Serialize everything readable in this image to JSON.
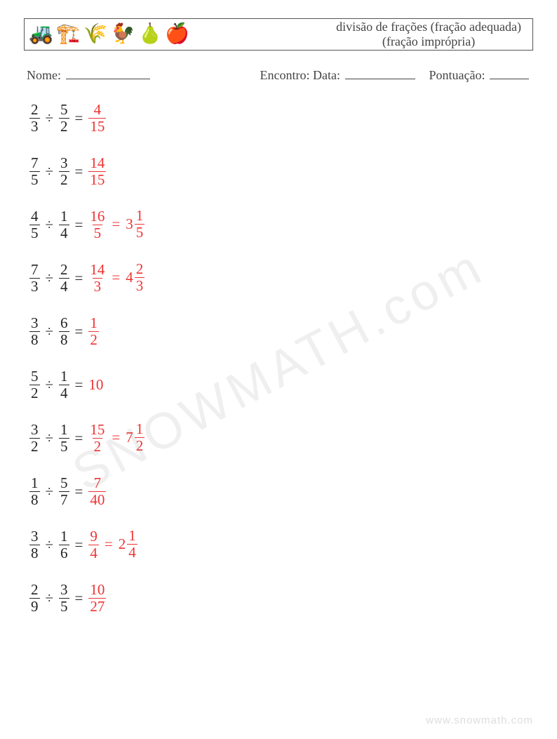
{
  "header": {
    "icons": [
      "🚜",
      "🏗️",
      "🌾",
      "🐓",
      "🍐",
      "🍎"
    ],
    "title_line1": "divisão de frações (fração adequada)",
    "title_line2": "(fração imprópria)"
  },
  "info": {
    "nome_label": "Nome:",
    "nome_blank_w": 120,
    "encontro_label": "Encontro: Data:",
    "encontro_blank_w": 100,
    "pontuacao_label": "Pontuação:",
    "pontuacao_blank_w": 56
  },
  "style": {
    "answer_color": "#e33",
    "text_color": "#222",
    "row_font_size": 21,
    "row_spacing": 28
  },
  "problems": [
    {
      "a": {
        "n": 2,
        "d": 3
      },
      "b": {
        "n": 5,
        "d": 2
      },
      "op": "÷",
      "ans": {
        "frac": {
          "n": 4,
          "d": 15
        }
      }
    },
    {
      "a": {
        "n": 7,
        "d": 5
      },
      "b": {
        "n": 3,
        "d": 2
      },
      "op": "÷",
      "ans": {
        "frac": {
          "n": 14,
          "d": 15
        }
      }
    },
    {
      "a": {
        "n": 4,
        "d": 5
      },
      "b": {
        "n": 1,
        "d": 4
      },
      "op": "÷",
      "ans": {
        "frac": {
          "n": 16,
          "d": 5
        },
        "mixed": {
          "w": 3,
          "n": 1,
          "d": 5
        }
      }
    },
    {
      "a": {
        "n": 7,
        "d": 3
      },
      "b": {
        "n": 2,
        "d": 4
      },
      "op": "÷",
      "ans": {
        "frac": {
          "n": 14,
          "d": 3
        },
        "mixed": {
          "w": 4,
          "n": 2,
          "d": 3
        }
      }
    },
    {
      "a": {
        "n": 3,
        "d": 8
      },
      "b": {
        "n": 6,
        "d": 8
      },
      "op": "÷",
      "ans": {
        "frac": {
          "n": 1,
          "d": 2
        }
      }
    },
    {
      "a": {
        "n": 5,
        "d": 2
      },
      "b": {
        "n": 1,
        "d": 4
      },
      "op": "÷",
      "ans": {
        "int": 10
      }
    },
    {
      "a": {
        "n": 3,
        "d": 2
      },
      "b": {
        "n": 1,
        "d": 5
      },
      "op": "÷",
      "ans": {
        "frac": {
          "n": 15,
          "d": 2
        },
        "mixed": {
          "w": 7,
          "n": 1,
          "d": 2
        }
      }
    },
    {
      "a": {
        "n": 1,
        "d": 8
      },
      "b": {
        "n": 5,
        "d": 7
      },
      "op": "÷",
      "ans": {
        "frac": {
          "n": 7,
          "d": 40
        }
      }
    },
    {
      "a": {
        "n": 3,
        "d": 8
      },
      "b": {
        "n": 1,
        "d": 6
      },
      "op": "÷",
      "ans": {
        "frac": {
          "n": 9,
          "d": 4
        },
        "mixed": {
          "w": 2,
          "n": 1,
          "d": 4
        }
      }
    },
    {
      "a": {
        "n": 2,
        "d": 9
      },
      "b": {
        "n": 3,
        "d": 5
      },
      "op": "÷",
      "ans": {
        "frac": {
          "n": 10,
          "d": 27
        }
      }
    }
  ],
  "watermark": "SNOWMATH.com",
  "footer": "www.snowmath.com"
}
